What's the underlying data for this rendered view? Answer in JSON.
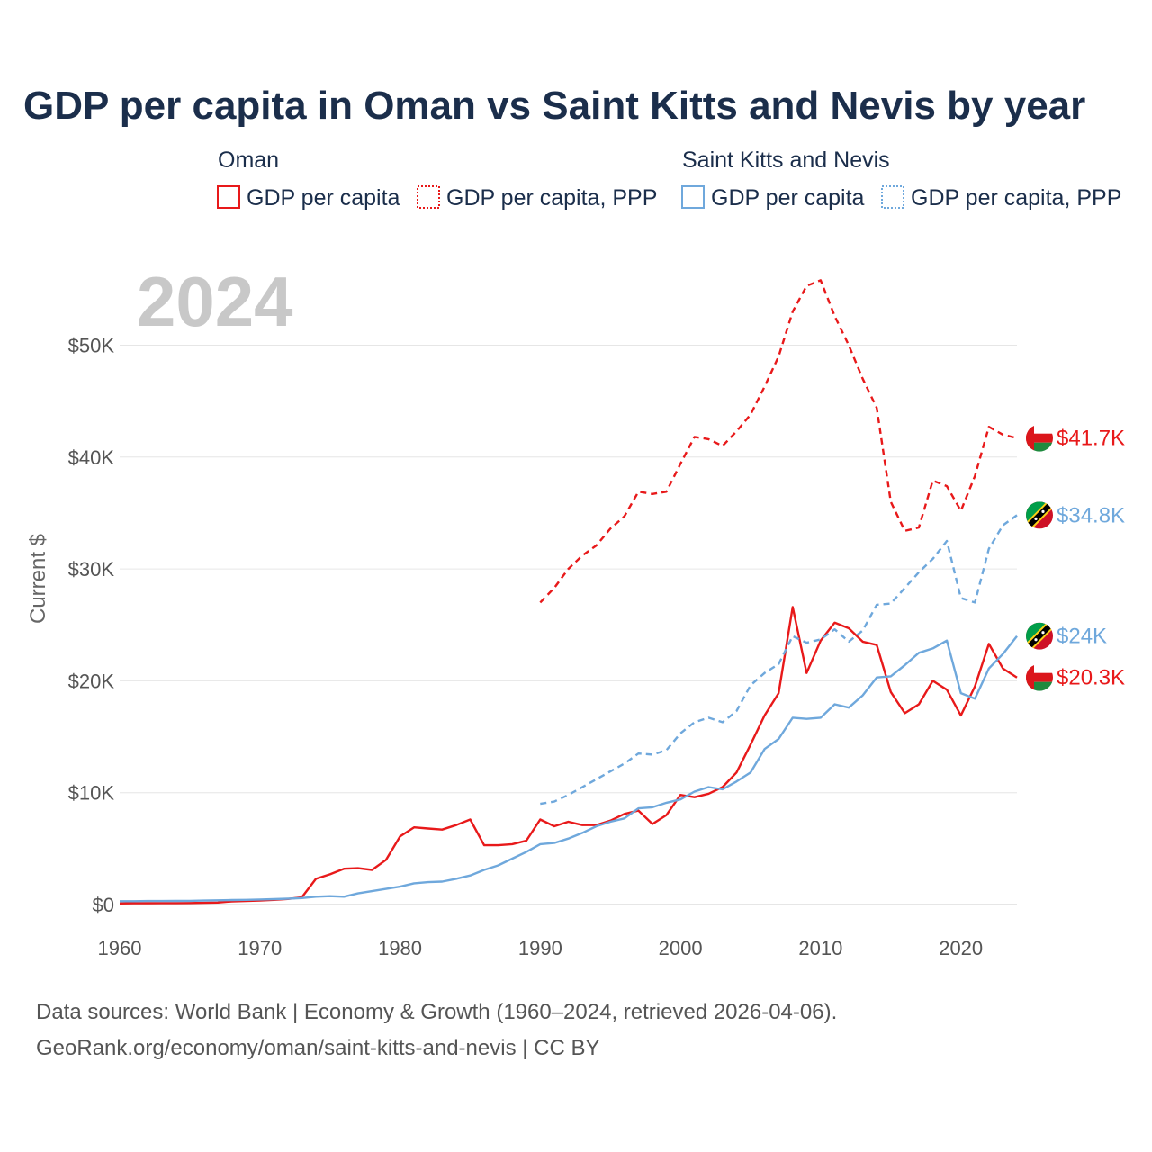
{
  "chart_data": {
    "type": "line",
    "title": "GDP per capita in Oman vs Saint Kitts and Nevis by year",
    "ylabel": "Current $",
    "xlabel": "",
    "year_stamp": "2024",
    "xlim": [
      1960,
      2024
    ],
    "ylim": [
      0,
      55000
    ],
    "x_ticks": [
      1960,
      1970,
      1980,
      1990,
      2000,
      2010,
      2020
    ],
    "x_tick_labels": [
      "1960",
      "1970",
      "1980",
      "1990",
      "2000",
      "2010",
      "2020"
    ],
    "y_ticks": [
      0,
      10000,
      20000,
      30000,
      40000,
      50000
    ],
    "y_tick_labels": [
      "$0",
      "$10K",
      "$20K",
      "$30K",
      "$40K",
      "$50K"
    ],
    "grid": true,
    "legend_groups": [
      {
        "name": "Oman",
        "items": [
          "GDP per capita",
          "GDP per capita, PPP"
        ]
      },
      {
        "name": "Saint Kitts and Nevis",
        "items": [
          "GDP per capita",
          "GDP per capita, PPP"
        ]
      }
    ],
    "series": [
      {
        "name": "Oman GDP per capita",
        "color": "#e8191a",
        "dash": false,
        "flag": "oman",
        "end_label": "$20.3K",
        "start_year": 1960,
        "values": [
          100,
          110,
          120,
          125,
          130,
          140,
          150,
          180,
          280,
          320,
          350,
          420,
          500,
          650,
          2300,
          2700,
          3200,
          3250,
          3100,
          4000,
          6100,
          6900,
          6800,
          6700,
          7100,
          7600,
          5300,
          5300,
          5400,
          5700,
          7600,
          7000,
          7400,
          7100,
          7100,
          7500,
          8100,
          8400,
          7200,
          8000,
          9800,
          9600,
          9900,
          10500,
          11800,
          14300,
          16900,
          18900,
          26600,
          20700,
          23600,
          25200,
          24700,
          23500,
          23200,
          19000,
          17100,
          17900,
          20000,
          19200,
          16900,
          19500,
          23300,
          21100,
          20300
        ]
      },
      {
        "name": "Oman GDP per capita, PPP",
        "color": "#e8191a",
        "dash": true,
        "flag": "oman",
        "end_label": "$41.7K",
        "start_year": 1990,
        "values": [
          27000,
          28300,
          30000,
          31200,
          32100,
          33600,
          34700,
          36900,
          36700,
          36900,
          39400,
          41800,
          41600,
          41000,
          42300,
          43800,
          46300,
          49000,
          53000,
          55300,
          55800,
          52600,
          50000,
          47000,
          44400,
          36000,
          33400,
          33700,
          37900,
          37400,
          35200,
          38300,
          42700,
          42000,
          41700
        ]
      },
      {
        "name": "Saint Kitts and Nevis GDP per capita",
        "color": "#6fa8dc",
        "dash": false,
        "flag": "skn",
        "end_label": "$24K",
        "start_year": 1960,
        "values": [
          300,
          300,
          310,
          310,
          320,
          330,
          350,
          380,
          400,
          420,
          450,
          480,
          520,
          580,
          700,
          750,
          700,
          1000,
          1200,
          1400,
          1600,
          1900,
          2000,
          2050,
          2300,
          2600,
          3100,
          3500,
          4100,
          4700,
          5400,
          5500,
          5900,
          6400,
          7000,
          7400,
          7700,
          8600,
          8700,
          9100,
          9400,
          10100,
          10500,
          10300,
          11000,
          11800,
          13900,
          14800,
          16700,
          16600,
          16700,
          17900,
          17600,
          18700,
          20300,
          20400,
          21400,
          22500,
          22900,
          23600,
          18900,
          18400,
          21100,
          22400,
          24000
        ]
      },
      {
        "name": "Saint Kitts and Nevis GDP per capita, PPP",
        "color": "#6fa8dc",
        "dash": true,
        "flag": "skn",
        "end_label": "$34.8K",
        "start_year": 1990,
        "values": [
          9000,
          9200,
          9800,
          10500,
          11200,
          11900,
          12600,
          13500,
          13400,
          13800,
          15300,
          16300,
          16700,
          16300,
          17300,
          19600,
          20700,
          21500,
          24000,
          23400,
          23700,
          24600,
          23500,
          24500,
          26800,
          26900,
          28300,
          29700,
          30900,
          32500,
          27400,
          27000,
          31800,
          33900,
          34800
        ]
      }
    ]
  },
  "footer": {
    "source_line": "Data sources: World Bank | Economy & Growth (1960–2024, retrieved 2026-04-06).",
    "url_line": "GeoRank.org/economy/oman/saint-kitts-and-nevis | CC BY"
  },
  "colors": {
    "title": "#1b2e4b",
    "oman": "#e8191a",
    "skn": "#6fa8dc",
    "grid": "#e6e6e6",
    "tick": "#555555",
    "year_stamp": "#c8c8c8"
  }
}
